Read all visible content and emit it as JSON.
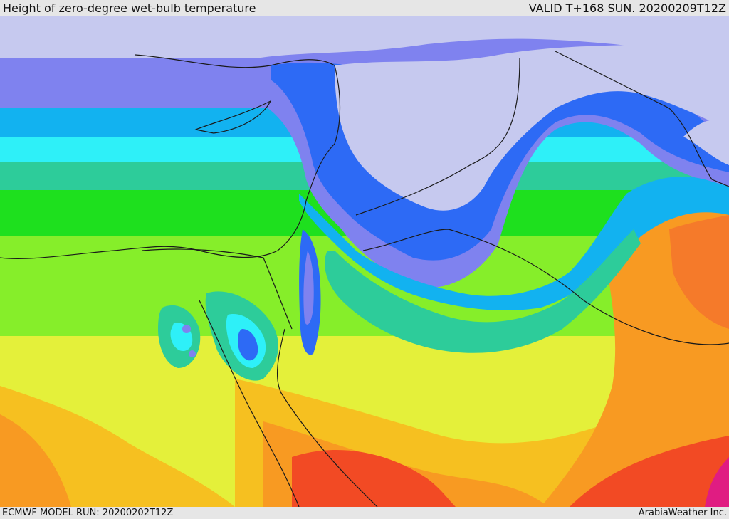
{
  "header": {
    "title": "Height of zero-degree wet-bulb temperature",
    "valid": "VALID T+168 SUN. 20200209T12Z"
  },
  "footer": {
    "model_run": "ECMWF MODEL RUN: 20200202T12Z",
    "credit": "ArabiaWeather Inc."
  },
  "palette": {
    "background": "#e6e6e6",
    "lavender": "#c6c9ef",
    "violet": "#7f82ef",
    "blue": "#2d6af5",
    "sky": "#12b2f0",
    "cyan": "#2ef0f8",
    "teal": "#2dcc9a",
    "green": "#1ee01e",
    "lime": "#86ee2a",
    "yellow": "#e4f03a",
    "gold": "#f6c020",
    "orange": "#f89a22",
    "dark-orange": "#f57a2a",
    "red": "#f24a24",
    "magenta": "#e01c82",
    "border": "#1a1a1a"
  }
}
